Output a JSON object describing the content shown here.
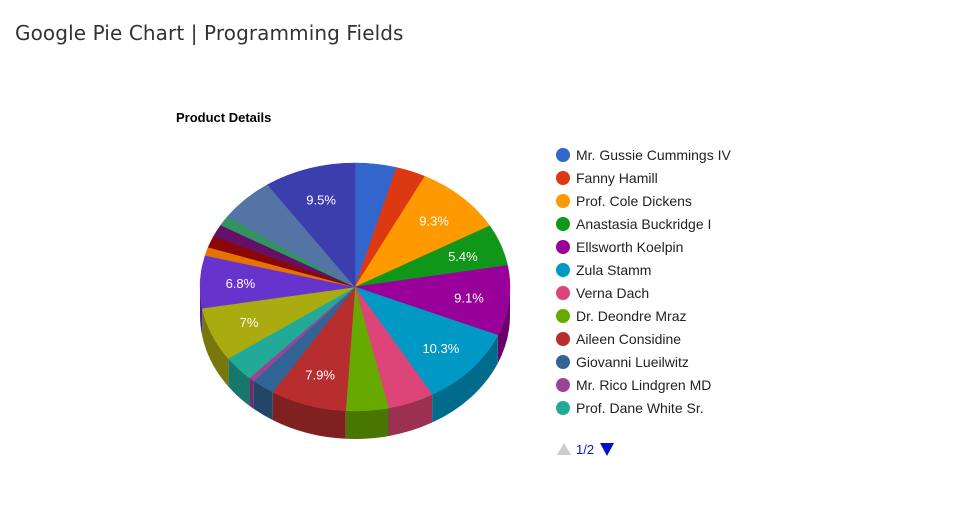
{
  "page": {
    "title": "Google Pie Chart | Programming Fields"
  },
  "legend_pager": {
    "text": "1/2",
    "prev_icon": "triangle-up-icon",
    "next_icon": "triangle-down-icon"
  },
  "chart_data": {
    "type": "pie",
    "title": "Product Details",
    "is3D": true,
    "legend_position": "right",
    "slices": [
      {
        "label": "Mr. Gussie Cummings IV",
        "value": 4.3,
        "color": "#3366cc"
      },
      {
        "label": "Fanny Hamill",
        "value": 3.1,
        "color": "#dc3912"
      },
      {
        "label": "Prof. Cole Dickens",
        "value": 9.3,
        "color": "#ff9900",
        "shown_label": "9.3%"
      },
      {
        "label": "Anastasia Buckridge I",
        "value": 5.4,
        "color": "#109618",
        "shown_label": "5.4%"
      },
      {
        "label": "Ellsworth Koelpin",
        "value": 9.1,
        "color": "#990099",
        "shown_label": "9.1%"
      },
      {
        "label": "Zula Stamm",
        "value": 10.3,
        "color": "#0099c6",
        "shown_label": "10.3%"
      },
      {
        "label": "Verna Dach",
        "value": 4.8,
        "color": "#dd4477"
      },
      {
        "label": "Dr. Deondre Mraz",
        "value": 4.4,
        "color": "#66aa00"
      },
      {
        "label": "Aileen Considine",
        "value": 7.9,
        "color": "#b82e2e",
        "shown_label": "7.9%"
      },
      {
        "label": "Giovanni Lueilwitz",
        "value": 2.4,
        "color": "#316395"
      },
      {
        "label": "Mr. Rico Lindgren MD",
        "value": 0.6,
        "color": "#994499"
      },
      {
        "label": "Prof. Dane White Sr.",
        "value": 3.3,
        "color": "#22aa99"
      },
      {
        "value": 7.0,
        "color": "#aaaa11",
        "shown_label": "7%"
      },
      {
        "value": 6.8,
        "color": "#6633cc",
        "shown_label": "6.8%"
      },
      {
        "value": 1.1,
        "color": "#e67300"
      },
      {
        "value": 1.5,
        "color": "#8b0707"
      },
      {
        "value": 1.6,
        "color": "#651067"
      },
      {
        "value": 1.3,
        "color": "#329262"
      },
      {
        "value": 5.8,
        "color": "#5574a6"
      },
      {
        "value": 9.5,
        "color": "#3b3eac",
        "shown_label": "9.5%"
      }
    ]
  }
}
